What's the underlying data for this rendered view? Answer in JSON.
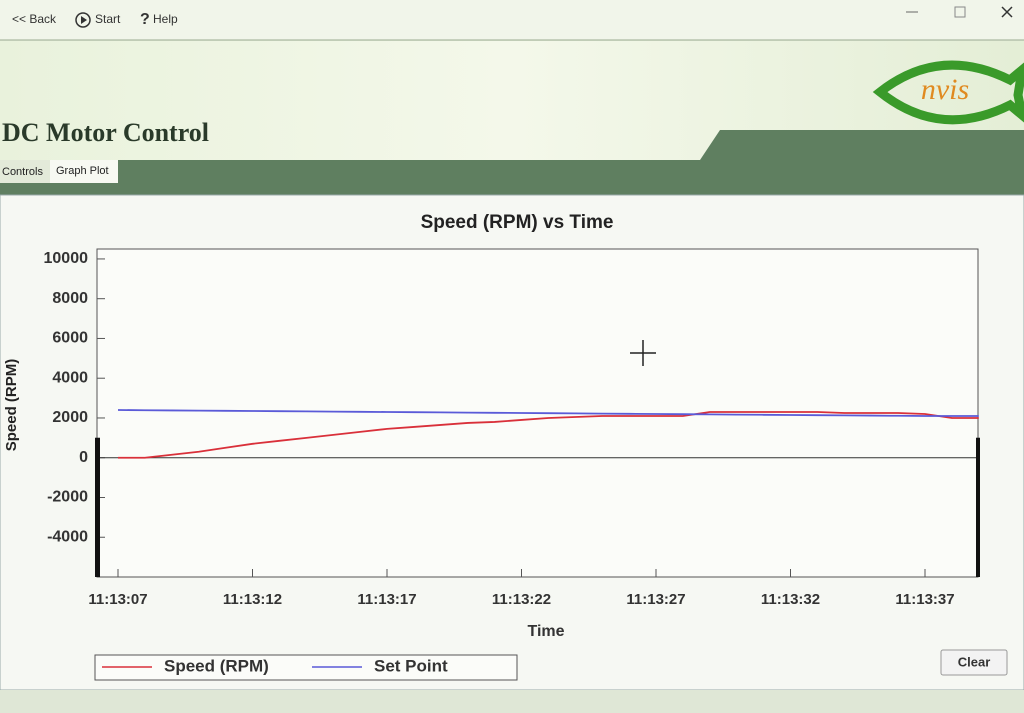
{
  "toolbar": {
    "back": "<< Back",
    "start": "Start",
    "help": "Help"
  },
  "header": {
    "title": "DC Motor Control",
    "logo": "nvis"
  },
  "tabs": [
    "Controls",
    "Graph Plot"
  ],
  "buttons": {
    "clear": "Clear"
  },
  "chart_data": {
    "type": "line",
    "title": "Speed (RPM) vs Time",
    "x_label": "Time",
    "y_label": "Speed (RPM)",
    "x": [
      "11:13:07",
      "11:13:08",
      "11:13:09",
      "11:13:10",
      "11:13:11",
      "11:13:12",
      "11:13:13",
      "11:13:14",
      "11:13:15",
      "11:13:16",
      "11:13:17",
      "11:13:18",
      "11:13:19",
      "11:13:20",
      "11:13:21",
      "11:13:22",
      "11:13:23",
      "11:13:24",
      "11:13:25",
      "11:13:26",
      "11:13:27",
      "11:13:28",
      "11:13:29",
      "11:13:30",
      "11:13:31",
      "11:13:32",
      "11:13:33",
      "11:13:34",
      "11:13:35",
      "11:13:36",
      "11:13:37",
      "11:13:38",
      "11:13:39"
    ],
    "xticks": [
      "11:13:07",
      "11:13:12",
      "11:13:17",
      "11:13:22",
      "11:13:27",
      "11:13:32",
      "11:13:37"
    ],
    "ylim": [
      -6000,
      10500
    ],
    "yticks": [
      -4000,
      -2000,
      0,
      2000,
      4000,
      6000,
      8000,
      10000
    ],
    "legend": "bottom-left",
    "series": [
      {
        "name": "Speed (RPM)",
        "color": "#d9303a",
        "values": [
          0,
          0,
          150,
          300,
          500,
          700,
          850,
          1000,
          1150,
          1300,
          1450,
          1550,
          1650,
          1750,
          1800,
          1900,
          2000,
          2050,
          2100,
          2100,
          2100,
          2100,
          2300,
          2300,
          2300,
          2300,
          2300,
          2250,
          2250,
          2250,
          2200,
          2000,
          2000
        ]
      },
      {
        "name": "Set Point",
        "color": "#5a5ad8",
        "values": [
          2400,
          2390,
          2380,
          2370,
          2360,
          2350,
          2340,
          2330,
          2320,
          2310,
          2300,
          2290,
          2280,
          2270,
          2260,
          2250,
          2240,
          2230,
          2220,
          2210,
          2200,
          2190,
          2180,
          2170,
          2160,
          2150,
          2140,
          2130,
          2120,
          2110,
          2100,
          2100,
          2100
        ]
      }
    ]
  }
}
